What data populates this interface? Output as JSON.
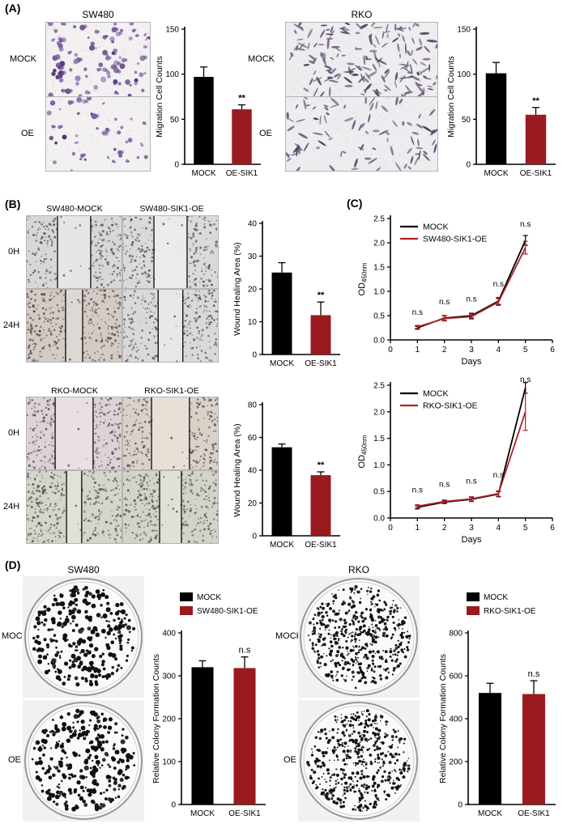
{
  "figure": {
    "panel_a": {
      "label": "(A)",
      "sw480": {
        "title": "SW480",
        "rows": [
          "MOCK",
          "OE"
        ]
      },
      "rko": {
        "title": "RKO",
        "rows": [
          "MOCK",
          "OE"
        ]
      }
    },
    "panel_b": {
      "label": "(B)",
      "sw480": {
        "cols": [
          "SW480-MOCK",
          "SW480-SIK1-OE"
        ],
        "rows": [
          "0H",
          "24H"
        ]
      },
      "rko": {
        "cols": [
          "RKO-MOCK",
          "RKO-SIK1-OE"
        ],
        "rows": [
          "0H",
          "24H"
        ]
      }
    },
    "panel_c": {
      "label": "(C)"
    },
    "panel_d": {
      "label": "(D)",
      "sw480": {
        "title": "SW480",
        "rows": [
          "MOCK",
          "OE"
        ]
      },
      "rko": {
        "title": "RKO",
        "rows": [
          "MOCK",
          "OE"
        ]
      }
    }
  },
  "colors": {
    "mock_bar": "#000000",
    "oe_bar": "#9a1b1f",
    "oe_line": "#b02025"
  },
  "chart_data": [
    {
      "id": "sw480-migration",
      "type": "bar",
      "categories": [
        "MOCK",
        "OE-SIK1"
      ],
      "values": [
        97,
        61
      ],
      "errors": [
        11,
        5
      ],
      "bar_colors": [
        "#000000",
        "#9a1b1f"
      ],
      "ylabel": "Migration Cell Counts",
      "ylim": [
        0,
        150
      ],
      "yticks": [
        0,
        50,
        100,
        150
      ],
      "sig_label": "**",
      "sig_on": 1
    },
    {
      "id": "rko-migration",
      "type": "bar",
      "categories": [
        "MOCK",
        "OE-SIK1"
      ],
      "values": [
        101,
        55
      ],
      "errors": [
        12,
        8
      ],
      "bar_colors": [
        "#000000",
        "#9a1b1f"
      ],
      "ylabel": "Migration Cell Counts",
      "ylim": [
        0,
        150
      ],
      "yticks": [
        0,
        50,
        100,
        150
      ],
      "sig_label": "**",
      "sig_on": 1
    },
    {
      "id": "sw480-wound",
      "type": "bar",
      "categories": [
        "MOCK",
        "OE-SIK1"
      ],
      "values": [
        25,
        12
      ],
      "errors": [
        3,
        4
      ],
      "bar_colors": [
        "#000000",
        "#9a1b1f"
      ],
      "ylabel": "Wound Healing Area (%)",
      "ylim": [
        0,
        40
      ],
      "yticks": [
        0,
        10,
        20,
        30,
        40
      ],
      "sig_label": "**",
      "sig_on": 1
    },
    {
      "id": "rko-wound",
      "type": "bar",
      "categories": [
        "MOCK",
        "OE-SIK1"
      ],
      "values": [
        54,
        37
      ],
      "errors": [
        2,
        2
      ],
      "bar_colors": [
        "#000000",
        "#9a1b1f"
      ],
      "ylabel": "Wound Healing Area (%)",
      "ylim": [
        0,
        80
      ],
      "yticks": [
        0,
        20,
        40,
        60,
        80
      ],
      "sig_label": "**",
      "sig_on": 1
    },
    {
      "id": "sw480-cck8",
      "type": "line",
      "x": [
        1,
        2,
        3,
        4,
        5
      ],
      "series": [
        {
          "name": "MOCK",
          "color": "#000000",
          "values": [
            0.25,
            0.45,
            0.5,
            0.8,
            2.05
          ],
          "errors": [
            0.03,
            0.05,
            0.05,
            0.07,
            0.1
          ]
        },
        {
          "name": "SW480-SIK1-OE",
          "color": "#b02025",
          "values": [
            0.27,
            0.44,
            0.48,
            0.78,
            1.9
          ],
          "errors": [
            0.03,
            0.05,
            0.05,
            0.07,
            0.13
          ]
        }
      ],
      "xlabel": "Days",
      "ylabel_base": "OD",
      "ylabel_sub": "450nm",
      "xlim": [
        0,
        6
      ],
      "xticks": [
        0,
        1,
        2,
        3,
        4,
        5,
        6
      ],
      "ylim": [
        0,
        2.5
      ],
      "yticks": [
        0,
        0.5,
        1,
        1.5,
        2,
        2.5
      ],
      "annotations": [
        {
          "x": 1,
          "y": 0.52,
          "text": "n.s"
        },
        {
          "x": 2,
          "y": 0.73,
          "text": "n.s"
        },
        {
          "x": 3,
          "y": 0.79,
          "text": "n.s"
        },
        {
          "x": 4,
          "y": 1.1,
          "text": "n.s"
        },
        {
          "x": 5,
          "y": 2.33,
          "text": "n.s"
        }
      ]
    },
    {
      "id": "rko-cck8",
      "type": "line",
      "x": [
        1,
        2,
        3,
        4,
        5
      ],
      "series": [
        {
          "name": "MOCK",
          "color": "#000000",
          "values": [
            0.2,
            0.3,
            0.35,
            0.45,
            2.45
          ],
          "errors": [
            0.03,
            0.03,
            0.04,
            0.05,
            0.1
          ]
        },
        {
          "name": "RKO-SIK1-OE",
          "color": "#b02025",
          "values": [
            0.22,
            0.31,
            0.36,
            0.46,
            2.0
          ],
          "errors": [
            0.03,
            0.03,
            0.04,
            0.05,
            0.35
          ]
        }
      ],
      "xlabel": "Days",
      "ylabel_base": "OD",
      "ylabel_sub": "450nm",
      "xlim": [
        0,
        6
      ],
      "xticks": [
        0,
        1,
        2,
        3,
        4,
        5,
        6
      ],
      "ylim": [
        0,
        2.5
      ],
      "yticks": [
        0,
        0.5,
        1,
        1.5,
        2,
        2.5
      ],
      "annotations": [
        {
          "x": 1,
          "y": 0.48,
          "text": "n.s"
        },
        {
          "x": 2,
          "y": 0.59,
          "text": "n.s"
        },
        {
          "x": 3,
          "y": 0.65,
          "text": "n.s"
        },
        {
          "x": 4,
          "y": 0.76,
          "text": "n.s"
        },
        {
          "x": 5,
          "y": 2.56,
          "text": "n.s"
        }
      ]
    },
    {
      "id": "sw480-colony",
      "type": "bar",
      "legend": [
        "MOCK",
        "SW480-SIK1-OE"
      ],
      "categories": [
        "MOCK",
        "OE-SIK1"
      ],
      "values": [
        320,
        318
      ],
      "errors": [
        15,
        26
      ],
      "bar_colors": [
        "#000000",
        "#9a1b1f"
      ],
      "ylabel": "Relative Colony Formation Counts",
      "ylim": [
        0,
        400
      ],
      "yticks": [
        0,
        100,
        200,
        300,
        400
      ],
      "sig_label": "n.s",
      "sig_on": 1
    },
    {
      "id": "rko-colony",
      "type": "bar",
      "legend": [
        "MOCK",
        "RKO-SIK1-OE"
      ],
      "categories": [
        "MOCK",
        "OE-SIK1"
      ],
      "values": [
        520,
        515
      ],
      "errors": [
        45,
        62
      ],
      "bar_colors": [
        "#000000",
        "#9a1b1f"
      ],
      "ylabel": "Relative Colony Formation Counts",
      "ylim": [
        0,
        800
      ],
      "yticks": [
        0,
        200,
        400,
        600,
        800
      ],
      "sig_label": "n.s",
      "sig_on": 1
    }
  ]
}
